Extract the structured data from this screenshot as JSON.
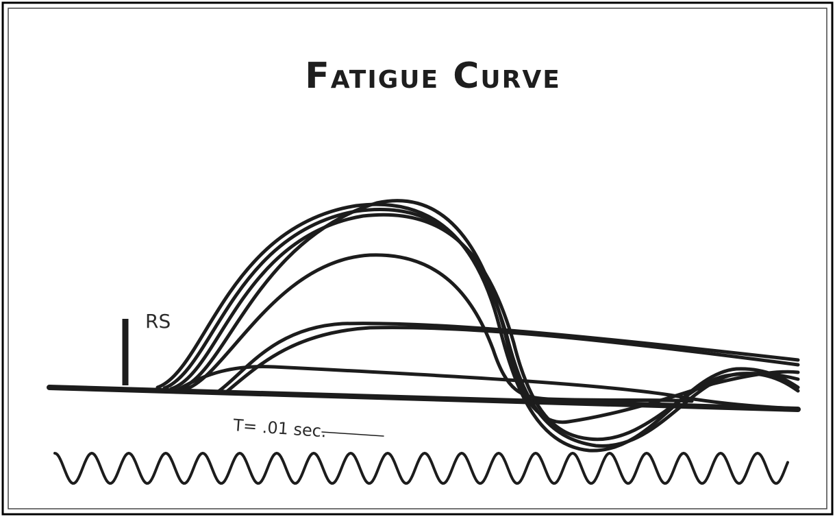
{
  "title": "Fatigue Curve",
  "stimulus_label": "RS",
  "time_label": "T= .01 sec."
}
